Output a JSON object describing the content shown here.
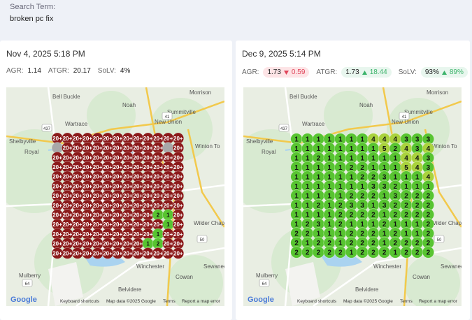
{
  "header": {
    "label": "Search Term:",
    "term": "broken pc fix"
  },
  "panels": [
    {
      "date": "Nov 4, 2025 5:18 PM",
      "metrics": [
        {
          "label": "AGR:",
          "value": "1.14"
        },
        {
          "label": "ATGR:",
          "value": "20.17"
        },
        {
          "label": "SoLV:",
          "value": "4%"
        }
      ],
      "grid": [
        [
          "20+",
          "20+",
          "20+",
          "20+",
          "20+",
          "20+",
          "20+",
          "20+",
          "20+",
          "20+",
          "20+",
          "20+",
          "20+"
        ],
        [
          null,
          "20+",
          "20+",
          "20+",
          "20+",
          "20+",
          "20+",
          "20+",
          "20+",
          "20+",
          "20+",
          null,
          "20+"
        ],
        [
          "20+",
          "20+",
          "20+",
          "20+",
          "20+",
          "20+",
          "20+",
          "20+",
          "20+",
          "20+",
          "20+",
          "20+",
          "20+"
        ],
        [
          "20+",
          "20+",
          "20+",
          "20+",
          "20+",
          "20+",
          "20+",
          "20+",
          "20+",
          "20+",
          "20+",
          "20+",
          "20+"
        ],
        [
          "20+",
          "20+",
          "20+",
          "20+",
          "20+",
          "20+",
          "20+",
          "20+",
          "20+",
          "20+",
          "20+",
          "20+",
          "20+"
        ],
        [
          "20+",
          "20+",
          "20+",
          "20+",
          "20+",
          "20+",
          "20+",
          "20+",
          "20+",
          "20+",
          "20+",
          "20+",
          "20+"
        ],
        [
          "20+",
          "20+",
          "20+",
          "20+",
          "20+",
          "20+",
          "20+",
          "20+",
          "20+",
          "20+",
          "20+",
          "20+",
          "20+"
        ],
        [
          "20+",
          "20+",
          "20+",
          "20+",
          "20+",
          "20+",
          "20+",
          "20+",
          "20+",
          "20+",
          "20+",
          "20+",
          "20+"
        ],
        [
          "20+",
          "20+",
          "20+",
          "20+",
          "20+",
          "20+",
          "20+",
          "20+",
          "20+",
          "20+",
          2,
          1,
          "20+"
        ],
        [
          "20+",
          "20+",
          "20+",
          "20+",
          "20+",
          "20+",
          "20+",
          "20+",
          "20+",
          "20+",
          "20+",
          1,
          "20+"
        ],
        [
          "20+",
          "20+",
          "20+",
          "20+",
          "20+",
          "20+",
          "20+",
          "20+",
          "20+",
          "20+",
          1,
          "20+",
          "20+"
        ],
        [
          "20+",
          "20+",
          "20+",
          "20+",
          "20+",
          "20+",
          "20+",
          "20+",
          "20+",
          1,
          2,
          "20+",
          "20+"
        ],
        [
          "20+",
          "20+",
          "20+",
          "20+",
          "20+",
          "20+",
          "20+",
          "20+",
          "20+",
          "20+",
          "20+",
          "20+",
          "20+"
        ]
      ],
      "map": {
        "labels": [
          "Morrison",
          "Bell Buckle",
          "Noah",
          "Summitville",
          "Wartrace",
          "New Union",
          "Shelbyville",
          "Royal",
          "Winton To",
          "Wilder Chapel",
          "Mulberry",
          "Sewanee",
          "Winchester",
          "Belvidere",
          "Cowan"
        ],
        "shields": [
          "437",
          "41",
          "55",
          "64",
          "16",
          "50"
        ],
        "logo": "Google",
        "footer": [
          "Keyboard shortcuts",
          "Map data ©2025 Google",
          "Terms",
          "Report a map error"
        ]
      }
    },
    {
      "date": "Dec 9, 2025 5:14 PM",
      "metrics": [
        {
          "label": "AGR:",
          "value": "1.73",
          "change": "0.59",
          "direction": "down"
        },
        {
          "label": "ATGR:",
          "value": "1.73",
          "change": "18.44",
          "direction": "up"
        },
        {
          "label": "SoLV:",
          "value": "93%",
          "change": "89%",
          "direction": "up"
        }
      ],
      "grid": [
        [
          1,
          1,
          1,
          1,
          1,
          1,
          1,
          4,
          4,
          4,
          3,
          3,
          3
        ],
        [
          1,
          1,
          1,
          1,
          1,
          1,
          1,
          1,
          5,
          2,
          4,
          3,
          4
        ],
        [
          1,
          1,
          2,
          1,
          1,
          1,
          1,
          1,
          1,
          1,
          4,
          4,
          3
        ],
        [
          1,
          1,
          1,
          1,
          1,
          2,
          2,
          1,
          1,
          1,
          5,
          4,
          3
        ],
        [
          1,
          1,
          1,
          1,
          1,
          1,
          2,
          2,
          3,
          1,
          1,
          1,
          4
        ],
        [
          1,
          1,
          1,
          1,
          1,
          1,
          1,
          3,
          3,
          2,
          1,
          1,
          1
        ],
        [
          1,
          1,
          1,
          1,
          1,
          2,
          2,
          2,
          1,
          3,
          2,
          2,
          2
        ],
        [
          1,
          1,
          2,
          1,
          2,
          3,
          3,
          1,
          3,
          2,
          2,
          2,
          2
        ],
        [
          1,
          1,
          1,
          1,
          2,
          2,
          2,
          2,
          1,
          2,
          2,
          2,
          2
        ],
        [
          1,
          2,
          3,
          1,
          2,
          1,
          1,
          1,
          2,
          1,
          1,
          1,
          2
        ],
        [
          2,
          2,
          1,
          1,
          1,
          2,
          2,
          2,
          1,
          2,
          1,
          1,
          2
        ],
        [
          2,
          1,
          2,
          2,
          1,
          2,
          2,
          2,
          1,
          2,
          2,
          2,
          2
        ],
        [
          2,
          2,
          2,
          2,
          2,
          1,
          2,
          2,
          2,
          1,
          2,
          2,
          2
        ]
      ],
      "map": {
        "labels": [
          "Morrison",
          "Bell Buckle",
          "Noah",
          "Summitville",
          "Wartrace",
          "New Union",
          "Shelbyville",
          "Royal",
          "Winton To",
          "Wilder Chapel",
          "Mulberry",
          "Sewanee",
          "Winchester",
          "Belvidere",
          "Cowan"
        ],
        "shields": [
          "437",
          "41",
          "55",
          "64",
          "16",
          "50"
        ],
        "logo": "Google",
        "footer": [
          "Keyboard shortcuts",
          "Map data ©2025 Google",
          "Terms",
          "Report a map error"
        ]
      }
    }
  ]
}
